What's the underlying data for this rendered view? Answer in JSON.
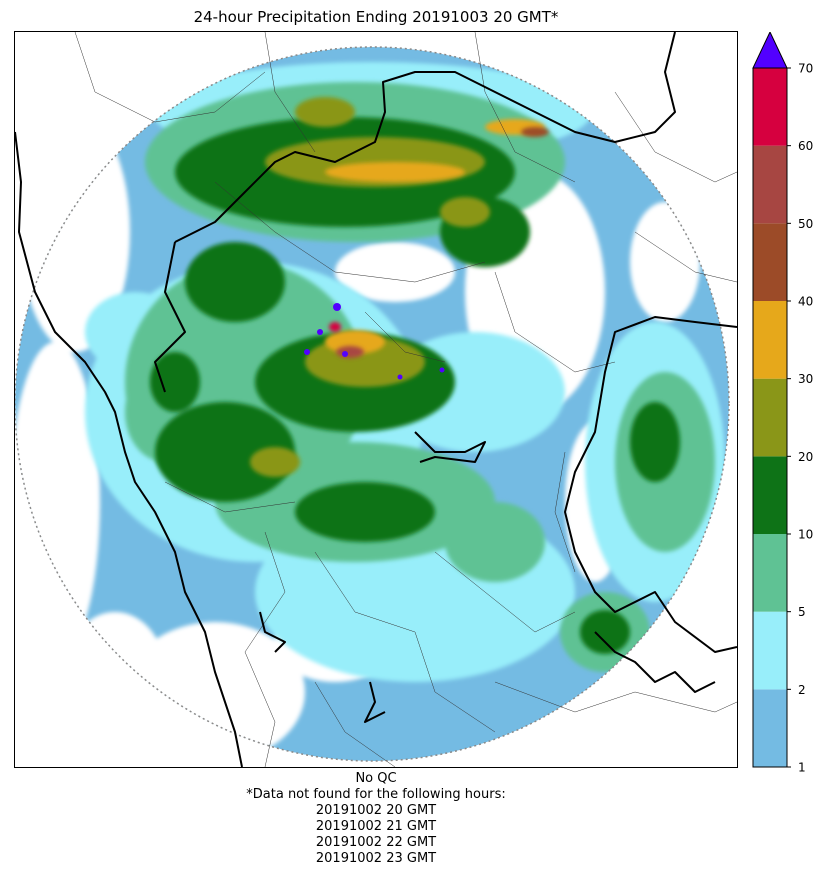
{
  "title": "24-hour Precipitation Ending 20191003 20 GMT*",
  "colorbar": {
    "ticks": [
      "1",
      "2",
      "5",
      "10",
      "20",
      "30",
      "40",
      "50",
      "60",
      "70"
    ],
    "colors": [
      "#74bbe3",
      "#98eefa",
      "#5fc294",
      "#0e7317",
      "#8a9618",
      "#e6a81b",
      "#9c4b28",
      "#a74642",
      "#d6003f"
    ],
    "overflow_color": "#5200ff"
  },
  "footer": {
    "qc": "No QC",
    "note": "*Data not found for the following hours:",
    "hours": [
      "20191002 20 GMT",
      "20191002 21 GMT",
      "20191002 22 GMT",
      "20191002 23 GMT"
    ]
  },
  "map": {
    "layers": [
      "precipitation-field",
      "radar-range-ring",
      "country-borders",
      "province-borders"
    ],
    "range_ring_style": "dotted-gray"
  }
}
